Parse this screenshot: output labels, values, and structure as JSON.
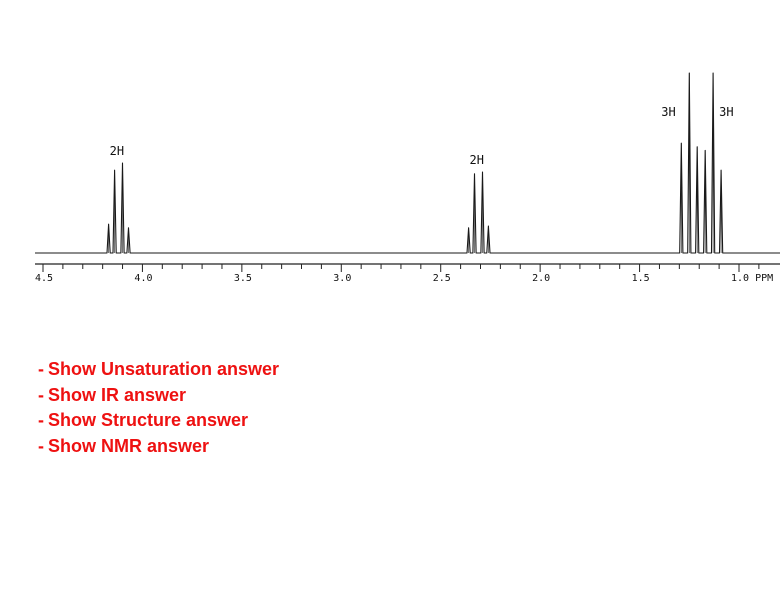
{
  "chart_data": {
    "type": "line",
    "title": "",
    "xlabel": "PPM",
    "ylabel": "",
    "x_axis": {
      "direction": "reversed",
      "range": [
        0.7,
        4.5
      ],
      "major_ticks": [
        4.5,
        4.0,
        3.5,
        3.0,
        2.5,
        2.0,
        1.5,
        1.0
      ],
      "tick_labels": [
        "4.5",
        "4.0",
        "3.5",
        "3.0",
        "2.5",
        "2.0",
        "1.5",
        "1.0 PPM"
      ]
    },
    "grid": false,
    "legend": "none",
    "series": [
      {
        "multiplet": "quartet",
        "center_ppm": 4.12,
        "lines_ppm": [
          4.17,
          4.14,
          4.1,
          4.07
        ],
        "relative_heights": [
          0.16,
          0.46,
          0.5,
          0.14
        ],
        "integration_label": "2H"
      },
      {
        "multiplet": "quartet",
        "center_ppm": 2.31,
        "lines_ppm": [
          2.36,
          2.33,
          2.29,
          2.26
        ],
        "relative_heights": [
          0.14,
          0.44,
          0.45,
          0.15
        ],
        "integration_label": "2H"
      },
      {
        "multiplet": "triplet",
        "center_ppm": 1.25,
        "lines_ppm": [
          1.29,
          1.25,
          1.21
        ],
        "relative_heights": [
          0.61,
          1.0,
          0.59
        ],
        "integration_label": "3H"
      },
      {
        "multiplet": "triplet",
        "center_ppm": 1.13,
        "lines_ppm": [
          1.17,
          1.13,
          1.09
        ],
        "relative_heights": [
          0.57,
          1.0,
          0.46
        ],
        "integration_label": "3H"
      }
    ]
  },
  "links": [
    {
      "dash": "-",
      "text": "Show Unsaturation answer"
    },
    {
      "dash": "-",
      "text": "Show IR answer"
    },
    {
      "dash": "-",
      "text": "Show Structure answer"
    },
    {
      "dash": "-",
      "text": "Show NMR answer"
    }
  ],
  "colors": {
    "link": "#ee1111",
    "trace": "#1a1a1a",
    "axis": "#222222"
  }
}
